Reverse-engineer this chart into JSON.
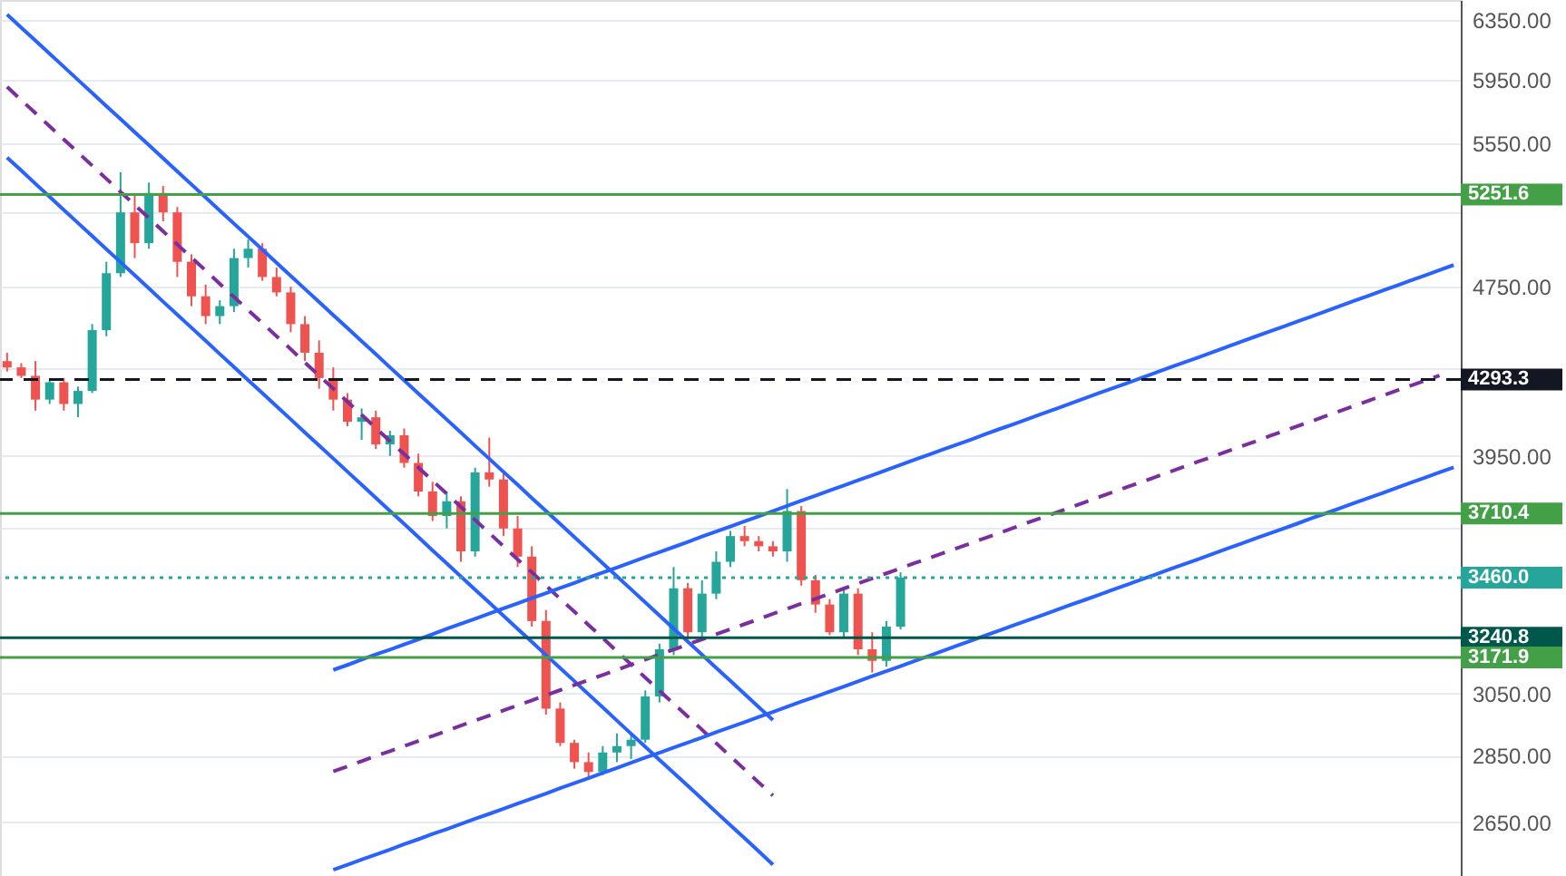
{
  "chart_data": {
    "type": "candlestick",
    "categories": [
      null,
      null,
      null,
      null,
      null,
      null,
      null,
      null,
      null,
      null,
      null,
      null,
      null,
      null,
      null,
      null,
      null,
      null,
      null,
      null,
      null,
      null,
      null,
      null,
      null,
      null,
      null,
      null,
      null,
      null,
      null,
      null,
      null,
      null,
      null,
      null,
      null,
      null,
      null,
      null,
      null,
      null,
      null,
      null,
      null,
      null,
      null,
      null,
      null,
      null,
      null,
      null,
      null,
      null,
      null,
      null,
      null,
      null,
      null,
      null,
      null,
      null,
      null,
      null,
      null,
      null,
      null,
      null,
      null,
      null,
      null,
      null,
      null,
      null,
      null,
      null,
      null,
      null,
      null,
      null,
      null,
      null,
      null,
      null,
      null,
      null,
      null,
      null,
      null,
      null,
      null,
      null,
      null,
      null,
      null,
      null,
      null,
      null,
      null,
      null,
      null,
      null,
      null
    ],
    "ohlc": [
      [
        4380,
        4420,
        4330,
        4350
      ],
      [
        4350,
        4370,
        4300,
        4310
      ],
      [
        4310,
        4380,
        4150,
        4200
      ],
      [
        4200,
        4290,
        4180,
        4280
      ],
      [
        4280,
        4300,
        4150,
        4180
      ],
      [
        4180,
        4260,
        4120,
        4240
      ],
      [
        4240,
        4560,
        4230,
        4530
      ],
      [
        4530,
        4880,
        4500,
        4820
      ],
      [
        4820,
        5380,
        4800,
        5150
      ],
      [
        5150,
        5250,
        4900,
        4980
      ],
      [
        4980,
        5320,
        4950,
        5260
      ],
      [
        5260,
        5300,
        5100,
        5150
      ],
      [
        5150,
        5180,
        4800,
        4880
      ],
      [
        4880,
        4920,
        4650,
        4700
      ],
      [
        4700,
        4760,
        4560,
        4600
      ],
      [
        4600,
        4680,
        4560,
        4650
      ],
      [
        4650,
        4950,
        4620,
        4900
      ],
      [
        4900,
        5000,
        4850,
        4950
      ],
      [
        4950,
        4980,
        4780,
        4800
      ],
      [
        4800,
        4850,
        4700,
        4720
      ],
      [
        4720,
        4750,
        4520,
        4560
      ],
      [
        4560,
        4600,
        4380,
        4420
      ],
      [
        4420,
        4480,
        4250,
        4300
      ],
      [
        4300,
        4350,
        4150,
        4200
      ],
      [
        4200,
        4230,
        4080,
        4100
      ],
      [
        4100,
        4160,
        4020,
        4120
      ],
      [
        4120,
        4150,
        3980,
        4000
      ],
      [
        4000,
        4060,
        3950,
        4040
      ],
      [
        4040,
        4070,
        3900,
        3920
      ],
      [
        3920,
        3960,
        3780,
        3800
      ],
      [
        3800,
        3840,
        3680,
        3700
      ],
      [
        3700,
        3800,
        3650,
        3760
      ],
      [
        3760,
        3780,
        3520,
        3560
      ],
      [
        3560,
        3900,
        3540,
        3880
      ],
      [
        3880,
        4030,
        3820,
        3850
      ],
      [
        3850,
        3890,
        3620,
        3650
      ],
      [
        3650,
        3700,
        3500,
        3540
      ],
      [
        3540,
        3580,
        3280,
        3300
      ],
      [
        3300,
        3340,
        2980,
        3000
      ],
      [
        3000,
        3020,
        2880,
        2890
      ],
      [
        2890,
        2900,
        2810,
        2830
      ],
      [
        2830,
        2860,
        2780,
        2800
      ],
      [
        2800,
        2880,
        2790,
        2860
      ],
      [
        2860,
        2920,
        2830,
        2880
      ],
      [
        2880,
        2920,
        2840,
        2900
      ],
      [
        2900,
        3060,
        2890,
        3040
      ],
      [
        3040,
        3220,
        3020,
        3200
      ],
      [
        3200,
        3500,
        3180,
        3420
      ],
      [
        3420,
        3440,
        3240,
        3260
      ],
      [
        3260,
        3450,
        3240,
        3400
      ],
      [
        3400,
        3560,
        3380,
        3520
      ],
      [
        3520,
        3640,
        3500,
        3620
      ],
      [
        3620,
        3660,
        3580,
        3600
      ],
      [
        3600,
        3620,
        3560,
        3580
      ],
      [
        3580,
        3600,
        3540,
        3560
      ],
      [
        3560,
        3810,
        3520,
        3720
      ],
      [
        3720,
        3740,
        3430,
        3450
      ],
      [
        3450,
        3470,
        3330,
        3360
      ],
      [
        3360,
        3380,
        3250,
        3260
      ],
      [
        3260,
        3420,
        3240,
        3400
      ],
      [
        3400,
        3420,
        3180,
        3200
      ],
      [
        3200,
        3260,
        3120,
        3160
      ],
      [
        3160,
        3300,
        3140,
        3280
      ],
      [
        3280,
        3480,
        3270,
        3460
      ],
      null,
      null,
      null,
      null,
      null,
      null,
      null,
      null,
      null,
      null,
      null,
      null,
      null,
      null,
      null,
      null,
      null,
      null,
      null,
      null,
      null,
      null,
      null,
      null,
      null,
      null,
      null,
      null,
      null,
      null,
      null,
      null,
      null,
      null,
      null,
      null,
      null,
      null,
      null
    ],
    "colors": [
      "#ef5350",
      "#ef5350",
      "#ef5350",
      "#26a69a",
      "#ef5350",
      "#26a69a",
      "#26a69a",
      "#26a69a",
      "#26a69a",
      "#ef5350",
      "#26a69a",
      "#ef5350",
      "#ef5350",
      "#ef5350",
      "#ef5350",
      "#26a69a",
      "#26a69a",
      "#26a69a",
      "#ef5350",
      "#ef5350",
      "#ef5350",
      "#ef5350",
      "#ef5350",
      "#ef5350",
      "#ef5350",
      "#26a69a",
      "#ef5350",
      "#26a69a",
      "#ef5350",
      "#ef5350",
      "#ef5350",
      "#26a69a",
      "#ef5350",
      "#26a69a",
      "#ef5350",
      "#ef5350",
      "#ef5350",
      "#ef5350",
      "#ef5350",
      "#ef5350",
      "#ef5350",
      "#ef5350",
      "#26a69a",
      "#26a69a",
      "#26a69a",
      "#26a69a",
      "#26a69a",
      "#26a69a",
      "#ef5350",
      "#26a69a",
      "#26a69a",
      "#26a69a",
      "#ef5350",
      "#ef5350",
      "#ef5350",
      "#26a69a",
      "#ef5350",
      "#ef5350",
      "#ef5350",
      "#26a69a",
      "#ef5350",
      "#ef5350",
      "#26a69a",
      "#26a69a",
      null,
      null,
      null,
      null,
      null,
      null,
      null,
      null,
      null,
      null,
      null,
      null,
      null,
      null,
      null,
      null,
      null,
      null,
      null,
      null,
      null,
      null,
      null,
      null,
      null,
      null,
      null,
      null,
      null,
      null,
      null,
      null,
      null,
      null,
      null,
      null,
      null,
      null,
      null
    ],
    "series": [
      {
        "type": "line",
        "color": "#2962ff",
        "line_style": "solid",
        "values": [
          6388,
          6298,
          6209,
          6121,
          6035,
          5949,
          5865,
          5782,
          5701,
          5620,
          5541,
          5463,
          5385,
          5309,
          5234,
          5160,
          5087,
          5016,
          4945,
          4875,
          4806,
          4738,
          4671,
          4605,
          4540,
          4476,
          4413,
          4350,
          4289,
          4228,
          4169,
          4110,
          4052,
          3994,
          3938,
          3882,
          3828,
          3773,
          3720,
          3668,
          3616,
          3565,
          3514,
          3465,
          3416,
          3368,
          3320,
          3273,
          3227,
          3181,
          3136,
          3092,
          3048,
          3005,
          2963,
          null,
          null,
          null,
          null,
          null,
          null,
          null,
          null,
          null,
          null,
          null,
          null,
          null,
          null,
          null,
          null,
          null,
          null,
          null,
          null,
          null,
          null,
          null,
          null,
          null,
          null,
          null,
          null,
          null,
          null,
          null,
          null,
          null,
          null,
          null,
          null,
          null,
          null,
          null,
          null,
          null,
          null,
          null,
          null,
          null,
          null,
          null,
          null
        ]
      },
      {
        "type": "line",
        "color": "#2962ff",
        "line_style": "solid",
        "values": [
          5467,
          5390,
          5313,
          5238,
          5164,
          5091,
          5019,
          4948,
          4878,
          4809,
          4741,
          4673,
          4607,
          4542,
          4478,
          4414,
          4352,
          4290,
          4230,
          4170,
          4111,
          4052,
          3995,
          3939,
          3883,
          3828,
          3774,
          3720,
          3668,
          3616,
          3564,
          3514,
          3464,
          3415,
          3367,
          3319,
          3272,
          3226,
          3180,
          3135,
          3091,
          3047,
          3004,
          2961,
          2919,
          2878,
          2837,
          2797,
          2758,
          2719,
          2680,
          2642,
          2605,
          2568,
          2531,
          null,
          null,
          null,
          null,
          null,
          null,
          null,
          null,
          null,
          null,
          null,
          null,
          null,
          null,
          null,
          null,
          null,
          null,
          null,
          null,
          null,
          null,
          null,
          null,
          null,
          null,
          null,
          null,
          null,
          null,
          null,
          null,
          null,
          null,
          null,
          null,
          null,
          null,
          null,
          null,
          null,
          null,
          null,
          null,
          null,
          null,
          null,
          null
        ]
      },
      {
        "type": "line",
        "color": "#7b2f9e",
        "line_style": "dashed",
        "values": [
          5904,
          5820,
          5738,
          5656,
          5576,
          5497,
          5419,
          5342,
          5266,
          5192,
          5118,
          5045,
          4973,
          4903,
          4834,
          4764,
          4697,
          4630,
          4565,
          4500,
          4437,
          4373,
          4311,
          4251,
          4190,
          4131,
          4072,
          4014,
          3958,
          3901,
          3845,
          3791,
          3737,
          3684,
          3632,
          3580,
          3529,
          3480,
          3430,
          3381,
          3334,
          3286,
          3240,
          3193,
          3148,
          3103,
          3059,
          3016,
          2974,
          2932,
          2889,
          2848,
          2808,
          2768,
          2729,
          null,
          null,
          null,
          null,
          null,
          null,
          null,
          null,
          null,
          null,
          null,
          null,
          null,
          null,
          null,
          null,
          null,
          null,
          null,
          null,
          null,
          null,
          null,
          null,
          null,
          null,
          null,
          null,
          null,
          null,
          null,
          null,
          null,
          null,
          null,
          null,
          null,
          null,
          null,
          null,
          null,
          null,
          null,
          null,
          null,
          null,
          null,
          null
        ]
      },
      {
        "type": "line",
        "color": "#2962ff",
        "line_style": "solid",
        "values": [
          null,
          null,
          null,
          null,
          null,
          null,
          null,
          null,
          null,
          null,
          null,
          null,
          null,
          null,
          null,
          null,
          null,
          null,
          null,
          null,
          null,
          null,
          null,
          3129,
          3146,
          3164,
          3182,
          3199,
          3217,
          3235,
          3253,
          3272,
          3290,
          3308,
          3327,
          3346,
          3364,
          3383,
          3402,
          3421,
          3440,
          3460,
          3479,
          3498,
          3518,
          3538,
          3557,
          3577,
          3597,
          3618,
          3638,
          3658,
          3679,
          3699,
          3720,
          3741,
          3762,
          3783,
          3804,
          3825,
          3847,
          3868,
          3890,
          3912,
          3934,
          3956,
          3978,
          4000,
          4022,
          4045,
          4068,
          4090,
          4113,
          4136,
          4159,
          4183,
          4206,
          4230,
          4253,
          4277,
          4301,
          4325,
          4350,
          4374,
          4398,
          4423,
          4448,
          4473,
          4498,
          4523,
          4548,
          4574,
          4599,
          4625,
          4651,
          4677,
          4703,
          4730,
          4756,
          4783,
          4809,
          4836,
          4863
        ]
      },
      {
        "type": "line",
        "color": "#7b2f9e",
        "line_style": "dashed",
        "values": [
          null,
          null,
          null,
          null,
          null,
          null,
          null,
          null,
          null,
          null,
          null,
          null,
          null,
          null,
          null,
          null,
          null,
          null,
          null,
          null,
          null,
          null,
          null,
          2802,
          2817,
          2833,
          2849,
          2864,
          2880,
          2896,
          2912,
          2928,
          2945,
          2961,
          2977,
          2994,
          3011,
          3027,
          3044,
          3061,
          3078,
          3095,
          3112,
          3129,
          3147,
          3164,
          3182,
          3199,
          3217,
          3235,
          3253,
          3271,
          3289,
          3307,
          3326,
          3344,
          3363,
          3381,
          3400,
          3419,
          3438,
          3457,
          3476,
          3495,
          3515,
          3534,
          3554,
          3573,
          3593,
          3613,
          3633,
          3653,
          3674,
          3694,
          3714,
          3735,
          3756,
          3777,
          3798,
          3819,
          3840,
          3861,
          3882,
          3904,
          3926,
          3947,
          3969,
          3991,
          4013,
          4036,
          4058,
          4081,
          4103,
          4126,
          4149,
          4172,
          4195,
          4218,
          4242,
          4265,
          4289,
          4312,
          null
        ]
      },
      {
        "type": "line",
        "color": "#2962ff",
        "line_style": "solid",
        "values": [
          null,
          null,
          null,
          null,
          null,
          null,
          null,
          null,
          null,
          null,
          null,
          null,
          null,
          null,
          null,
          null,
          null,
          null,
          null,
          null,
          null,
          null,
          null,
          2517,
          2531,
          2545,
          2559,
          2573,
          2588,
          2602,
          2617,
          2631,
          2646,
          2661,
          2675,
          2690,
          2705,
          2720,
          2735,
          2751,
          2766,
          2781,
          2797,
          2812,
          2828,
          2844,
          2859,
          2875,
          2891,
          2907,
          2924,
          2940,
          2956,
          2973,
          2989,
          3006,
          3023,
          3039,
          3056,
          3073,
          3090,
          3108,
          3125,
          3142,
          3160,
          3177,
          3195,
          3213,
          3231,
          3249,
          3267,
          3285,
          3303,
          3321,
          3340,
          3359,
          3377,
          3396,
          3415,
          3434,
          3453,
          3472,
          3492,
          3511,
          3530,
          3550,
          3570,
          3590,
          3610,
          3630,
          3650,
          3670,
          3691,
          3711,
          3732,
          3753,
          3773,
          3794,
          3816,
          3837,
          3858,
          3880,
          3901
        ]
      }
    ],
    "ref_lines": [
      {
        "axis": "y",
        "value": 5251.6,
        "label": "5251.6",
        "color": "#43a047",
        "line_style": "solid"
      },
      {
        "axis": "y",
        "value": 4293.3,
        "label": "4293.3",
        "color": "#131722",
        "line_style": "dashed"
      },
      {
        "axis": "y",
        "value": 3710.4,
        "label": "3710.4",
        "color": "#43a047",
        "line_style": "solid"
      },
      {
        "axis": "y",
        "value": 3460,
        "label": "3460.0",
        "color": "#26a69a",
        "line_style": "dotted"
      },
      {
        "axis": "y",
        "value": 3240.8,
        "label": "3240.8",
        "color": "#00574b",
        "line_style": "solid"
      },
      {
        "axis": "y",
        "value": 3171.9,
        "label": "3171.9",
        "color": "#43a047",
        "line_style": "solid"
      }
    ],
    "log": "y",
    "ylim": [
      2500,
      6490
    ],
    "yticks": [
      {
        "value": 6350,
        "label": "6350.00"
      },
      {
        "value": 5950,
        "label": "5950.00"
      },
      {
        "value": 5550,
        "label": "5550.00"
      },
      {
        "value": 5150,
        "label": null
      },
      {
        "value": 4750,
        "label": "4750.00"
      },
      {
        "value": 4350,
        "label": null
      },
      {
        "value": 3950,
        "label": "3950.00"
      },
      {
        "value": 3650,
        "label": null
      },
      {
        "value": 3050,
        "label": "3050.00"
      },
      {
        "value": 2850,
        "label": "2850.00"
      },
      {
        "value": 2650,
        "label": "2650.00"
      }
    ],
    "grid": "y",
    "tick_labels": "y"
  }
}
